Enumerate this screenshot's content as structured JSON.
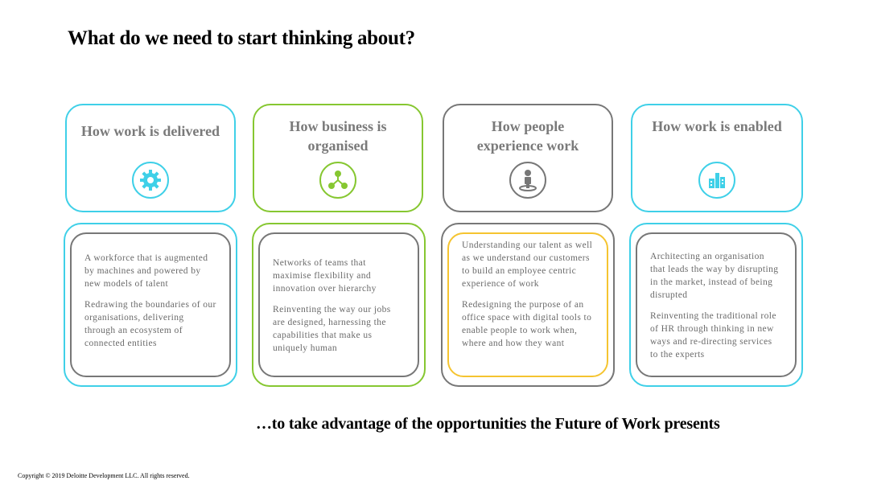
{
  "title": "What do we need to start thinking about?",
  "footer": "…to take advantage of the opportunities the Future of Work presents",
  "copyright": "Copyright © 2019 Deloitte Development LLC. All rights reserved.",
  "columns": [
    {
      "heading": "How work is delivered",
      "icon": "gear-icon",
      "color": "#3fd0e8",
      "paragraphs": [
        "A workforce that is augmented by machines and powered by new models of talent",
        "Redrawing the boundaries of our organisations, delivering through an ecosystem of connected entities"
      ]
    },
    {
      "heading": "How business is organised",
      "icon": "network-icon",
      "color": "#86c731",
      "paragraphs": [
        "Networks of teams that maximise flexibility and innovation over hierarchy",
        "Reinventing the way our jobs are designed, harnessing the capabilities that make us uniquely human"
      ]
    },
    {
      "heading": "How people experience work",
      "icon": "person-icon",
      "color": "#777777",
      "paragraphs": [
        "Understanding our talent as well as we understand our customers to build an employee centric experience of work",
        "Redesigning the purpose of an office space with digital tools to enable people to work when, where and how they want"
      ]
    },
    {
      "heading": "How work is enabled",
      "icon": "building-icon",
      "color": "#3fd0e8",
      "paragraphs": [
        "Architecting an organisation that leads the way by disrupting in the market, instead of being disrupted",
        "Reinventing the traditional role of HR through thinking in new ways and re-directing services to the experts"
      ]
    }
  ]
}
